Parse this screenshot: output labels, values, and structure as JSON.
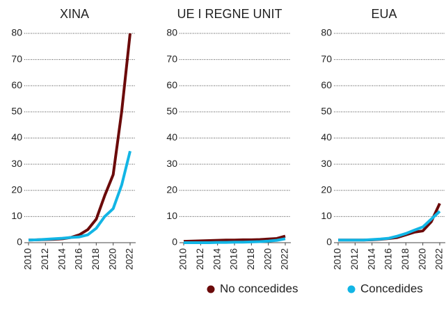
{
  "chart_data": [
    {
      "type": "line",
      "title": "XINA",
      "x": [
        2010,
        2011,
        2012,
        2013,
        2014,
        2015,
        2016,
        2017,
        2018,
        2019,
        2020,
        2021,
        2022
      ],
      "series": [
        {
          "name": "No concedides",
          "color": "#6b0a0a",
          "values": [
            1,
            1.1,
            1.2,
            1.3,
            1.5,
            2,
            3,
            5,
            9,
            18,
            26,
            50,
            80
          ]
        },
        {
          "name": "Concedides",
          "color": "#12b5e5",
          "values": [
            1,
            1.1,
            1.3,
            1.5,
            1.7,
            2,
            2.2,
            3,
            5.5,
            10,
            13,
            22,
            35
          ]
        }
      ],
      "xlim": [
        2010,
        2022
      ],
      "xticks": [
        2010,
        2012,
        2014,
        2016,
        2018,
        2020,
        2022
      ],
      "ylim": [
        0,
        80
      ],
      "yticks": [
        0,
        10,
        20,
        30,
        40,
        50,
        60,
        70,
        80
      ],
      "grid": true
    },
    {
      "type": "line",
      "title": "UE I REGNE UNIT",
      "x": [
        2010,
        2011,
        2012,
        2013,
        2014,
        2015,
        2016,
        2017,
        2018,
        2019,
        2020,
        2021,
        2022
      ],
      "series": [
        {
          "color": "#6b0a0a",
          "values": [
            0.5,
            0.6,
            0.7,
            0.8,
            0.9,
            1,
            1,
            1.1,
            1.1,
            1.2,
            1.4,
            1.6,
            2.5
          ]
        },
        {
          "color": "#12b5e5",
          "values": [
            0,
            0,
            0,
            0,
            0.1,
            0.1,
            0.2,
            0.2,
            0.3,
            0.4,
            0.6,
            0.9,
            1.5
          ]
        }
      ],
      "xlim": [
        2010,
        2022
      ],
      "xticks": [
        2010,
        2012,
        2014,
        2016,
        2018,
        2020,
        2022
      ],
      "ylim": [
        0,
        80
      ],
      "yticks": [
        0,
        10,
        20,
        30,
        40,
        50,
        60,
        70,
        80
      ],
      "grid": true
    },
    {
      "type": "line",
      "title": "EUA",
      "x": [
        2010,
        2011,
        2012,
        2013,
        2014,
        2015,
        2016,
        2017,
        2018,
        2019,
        2020,
        2021,
        2022
      ],
      "series": [
        {
          "color": "#6b0a0a",
          "values": [
            1,
            1,
            1,
            1,
            1.1,
            1.3,
            1.6,
            2,
            3,
            4,
            4.5,
            8,
            15
          ]
        },
        {
          "color": "#12b5e5",
          "values": [
            1,
            1,
            1,
            1,
            1.2,
            1.4,
            1.7,
            2.5,
            3.5,
            4.8,
            6,
            9,
            12
          ]
        }
      ],
      "xlim": [
        2010,
        2022
      ],
      "xticks": [
        2010,
        2012,
        2014,
        2016,
        2018,
        2020,
        2022
      ],
      "ylim": [
        0,
        80
      ],
      "yticks": [
        0,
        10,
        20,
        30,
        40,
        50,
        60,
        70,
        80
      ],
      "grid": true
    }
  ]
}
